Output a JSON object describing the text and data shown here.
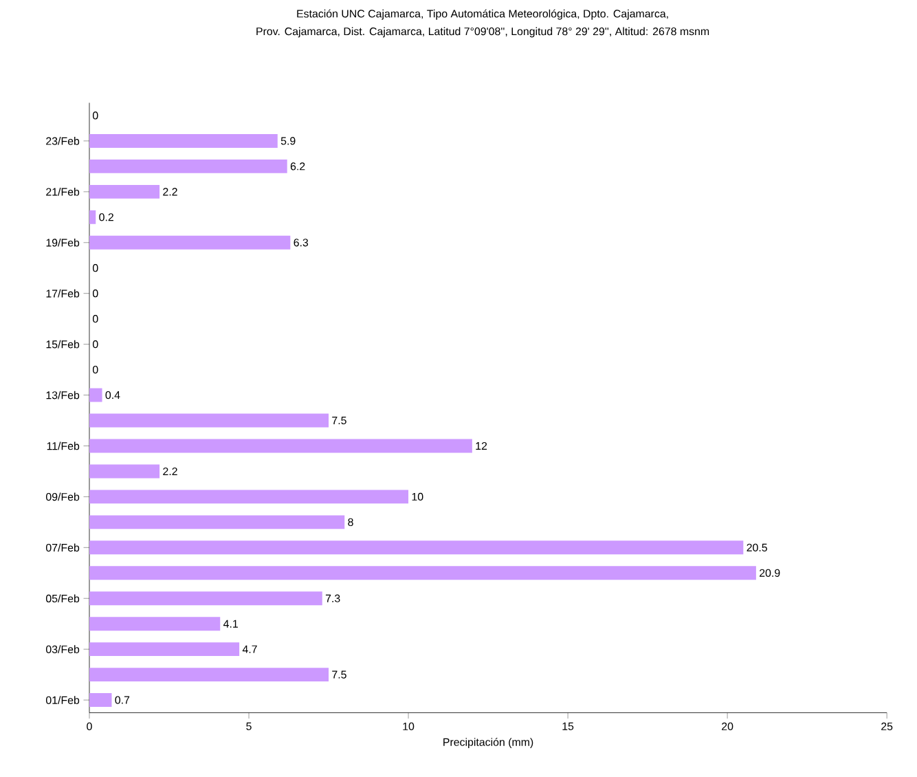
{
  "chart_data": {
    "type": "bar",
    "orientation": "horizontal",
    "title": "Estación UNC Cajamarca, Tipo Automática Meteorológica, Dpto. Cajamarca,",
    "subtitle": "Prov. Cajamarca, Dist. Cajamarca, Latitud 7°09'08'', Longitud 78° 29' 29'', Altitud: 2678 msnm",
    "xlabel": "Precipitación (mm)",
    "categories": [
      null,
      "23/Feb",
      null,
      "21/Feb",
      null,
      "19/Feb",
      null,
      "17/Feb",
      null,
      "15/Feb",
      null,
      "13/Feb",
      null,
      "11/Feb",
      null,
      "09/Feb",
      null,
      "07/Feb",
      null,
      "05/Feb",
      null,
      "03/Feb",
      null,
      "01/Feb"
    ],
    "values": [
      0,
      5.9,
      6.2,
      2.2,
      0.2,
      6.3,
      0,
      0,
      0,
      0,
      0,
      0.4,
      7.5,
      12,
      2.2,
      10,
      8,
      20.5,
      20.9,
      7.3,
      4.1,
      4.7,
      7.5,
      0.7
    ],
    "color": "#cc99ff",
    "xlim": [
      0,
      25
    ],
    "xticks": [
      0,
      5,
      10,
      15,
      20,
      25
    ],
    "data_labels": true,
    "grid": false
  }
}
